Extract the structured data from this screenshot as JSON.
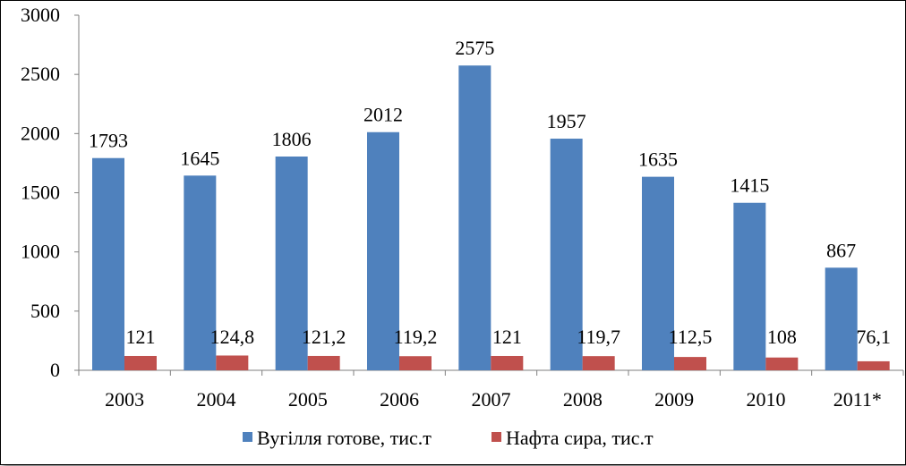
{
  "chart_data": {
    "type": "bar",
    "categories": [
      "2003",
      "2004",
      "2005",
      "2006",
      "2007",
      "2008",
      "2009",
      "2010",
      "2011*"
    ],
    "series": [
      {
        "name": "Вугілля готове, тис.т",
        "color": "#4F81BD",
        "values": [
          1793,
          1645,
          1806,
          2012,
          2575,
          1957,
          1635,
          1415,
          867
        ],
        "labels": [
          "1793",
          "1645",
          "1806",
          "2012",
          "2575",
          "1957",
          "1635",
          "1415",
          "867"
        ]
      },
      {
        "name": "Нафта сира, тис.т",
        "color": "#C0504D",
        "values": [
          121,
          124.8,
          121.2,
          119.2,
          121,
          119.7,
          112.5,
          108,
          76.1
        ],
        "labels": [
          "121",
          "124,8",
          "121,2",
          "119,2",
          "121",
          "119,7",
          "112,5",
          "108",
          "76,1"
        ]
      }
    ],
    "ylim": [
      0,
      3000
    ],
    "yticks": [
      0,
      500,
      1000,
      1500,
      2000,
      2500,
      3000
    ],
    "title": "",
    "xlabel": "",
    "ylabel": "",
    "grid": false,
    "legend_position": "bottom"
  }
}
